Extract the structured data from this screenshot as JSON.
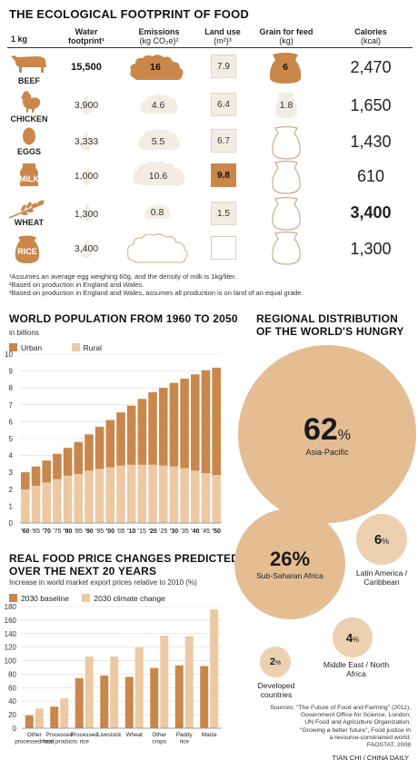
{
  "colors": {
    "dark": "#c9874b",
    "light": "#ecc9a3",
    "bg": "#f3ece2",
    "circle": "#e4bd93",
    "circle_small": "#ecd0b0"
  },
  "footprint": {
    "title": "THE ECOLOGICAL FOOTPRINT OF FOOD",
    "headers": {
      "kg": "1 kg",
      "water": "Water footprint¹",
      "emissions": "Emissions",
      "emissions_unit": "(kg CO₂e)²",
      "land": "Land use",
      "land_unit": "(m²)³",
      "grain": "Grain for feed",
      "grain_unit": "(kg)",
      "calories": "Calories",
      "calories_unit": "(kcal)"
    },
    "rows": [
      {
        "name": "BEEF",
        "icon": "cow-icon",
        "water": "15,500",
        "emissions": "16",
        "land": "7.9",
        "grain": "6",
        "calories": "2,470"
      },
      {
        "name": "CHICKEN",
        "icon": "chicken-icon",
        "water": "3,900",
        "emissions": "4.6",
        "land": "6.4",
        "grain": "1.8",
        "calories": "1,650"
      },
      {
        "name": "EGGS",
        "icon": "egg-icon",
        "water": "3,333",
        "emissions": "5.5",
        "land": "6.7",
        "grain": "",
        "calories": "1,430"
      },
      {
        "name": "MILK",
        "icon": "milk-carton-icon",
        "water": "1,000",
        "emissions": "10.6",
        "land": "9.8",
        "grain": "",
        "calories": "610"
      },
      {
        "name": "WHEAT",
        "icon": "wheat-icon",
        "water": "1,300",
        "emissions": "0.8",
        "land": "1.5",
        "grain": "",
        "calories": "3,400"
      },
      {
        "name": "RICE",
        "icon": "rice-bag-icon",
        "water": "3,400",
        "emissions": "",
        "land": "",
        "grain": "",
        "calories": "1,300"
      }
    ],
    "footnotes": [
      "¹Assumes an average egg weighing 60g, and the density of milk is 1kg/liter.",
      "²Based on production in England and Wales.",
      "³Based on production in England and Wales, assumes all production is on land of an equal grade."
    ]
  },
  "population": {
    "title": "WORLD POPULATION FROM 1960 TO 2050",
    "unit": "in billions",
    "legend": [
      "Urban",
      "Rural"
    ]
  },
  "prices": {
    "title_line1": "REAL FOOD PRICE CHANGES PREDICTED",
    "title_line2": "OVER THE NEXT 20 YEARS",
    "subtitle": "Increase in world market export prices relative to 2010 (%)",
    "legend": [
      "2030 baseline",
      "2030 climate change"
    ]
  },
  "hunger": {
    "title_line1": "REGIONAL DISTRIBUTION",
    "title_line2": "OF THE WORLD'S HUNGRY",
    "regions": [
      {
        "pct": "62",
        "unit": "%",
        "name": "Asia-Pacific"
      },
      {
        "pct": "26%",
        "unit": "",
        "name": "Sub-Saharan Africa"
      },
      {
        "pct": "6",
        "unit": "%",
        "name": "Latin America / Caribbean"
      },
      {
        "pct": "4",
        "unit": "%",
        "name": "Middle East / North Africa"
      },
      {
        "pct": "2",
        "unit": "%",
        "name": "Developed countries"
      }
    ]
  },
  "sources": {
    "lines": [
      "Sources: \"The Future of Food and Farming\" (2011),",
      "Government Office for Science, London;",
      "UN Food and Agriculture Organization;",
      "\"Growing a better future\", Food justice in",
      "a resource-constrained world;",
      "FAOSTAT, 2008"
    ],
    "credit": "TIAN CHI / CHINA DAILY"
  },
  "chart_data": [
    {
      "type": "bar",
      "stacked": true,
      "title": "WORLD POPULATION FROM 1960 TO 2050",
      "ylabel": "in billions",
      "ylim": [
        0,
        10
      ],
      "categories": [
        "'60",
        "'65",
        "'70",
        "'75",
        "'80",
        "'85",
        "'90",
        "'95",
        "'00",
        "'05",
        "'10",
        "'15",
        "'20",
        "'25",
        "'30",
        "'35",
        "'40",
        "'45",
        "'50"
      ],
      "tick_labels": [
        "'60",
        "'65",
        "'70",
        "'75",
        "'80",
        "'85",
        "'90",
        "'95",
        "'00",
        "'05",
        "'10",
        "'15",
        "'20",
        "'25",
        "'30",
        "'35",
        "'40",
        "'45",
        "'50"
      ],
      "series": [
        {
          "name": "Rural",
          "values": [
            2.0,
            2.2,
            2.4,
            2.6,
            2.8,
            2.9,
            3.1,
            3.2,
            3.3,
            3.4,
            3.45,
            3.45,
            3.45,
            3.4,
            3.35,
            3.25,
            3.1,
            2.95,
            2.85
          ]
        },
        {
          "name": "Urban",
          "values": [
            1.0,
            1.15,
            1.3,
            1.5,
            1.65,
            1.9,
            2.15,
            2.5,
            2.8,
            3.15,
            3.5,
            3.9,
            4.3,
            4.6,
            4.95,
            5.3,
            5.7,
            6.1,
            6.35
          ]
        }
      ],
      "yticks": [
        0,
        1,
        2,
        3,
        4,
        5,
        6,
        7,
        8,
        9,
        10
      ]
    },
    {
      "type": "bar",
      "title": "REAL FOOD PRICE CHANGES PREDICTED OVER THE NEXT 20 YEARS",
      "ylabel": "Increase in world market export prices relative to 2010 (%)",
      "ylim": [
        0,
        180
      ],
      "categories": [
        "Other processed food",
        "Processed meat products",
        "Processed rice",
        "Livestock",
        "Wheat",
        "Other crops",
        "Paddy rice",
        "Maize"
      ],
      "series": [
        {
          "name": "2030 baseline",
          "values": [
            19,
            32,
            74,
            78,
            76,
            89,
            93,
            92
          ]
        },
        {
          "name": "2030 climate change",
          "values": [
            29,
            44,
            106,
            106,
            120,
            137,
            136,
            176
          ]
        }
      ],
      "yticks": [
        0,
        20,
        40,
        60,
        80,
        100,
        120,
        140,
        160,
        180
      ]
    }
  ]
}
